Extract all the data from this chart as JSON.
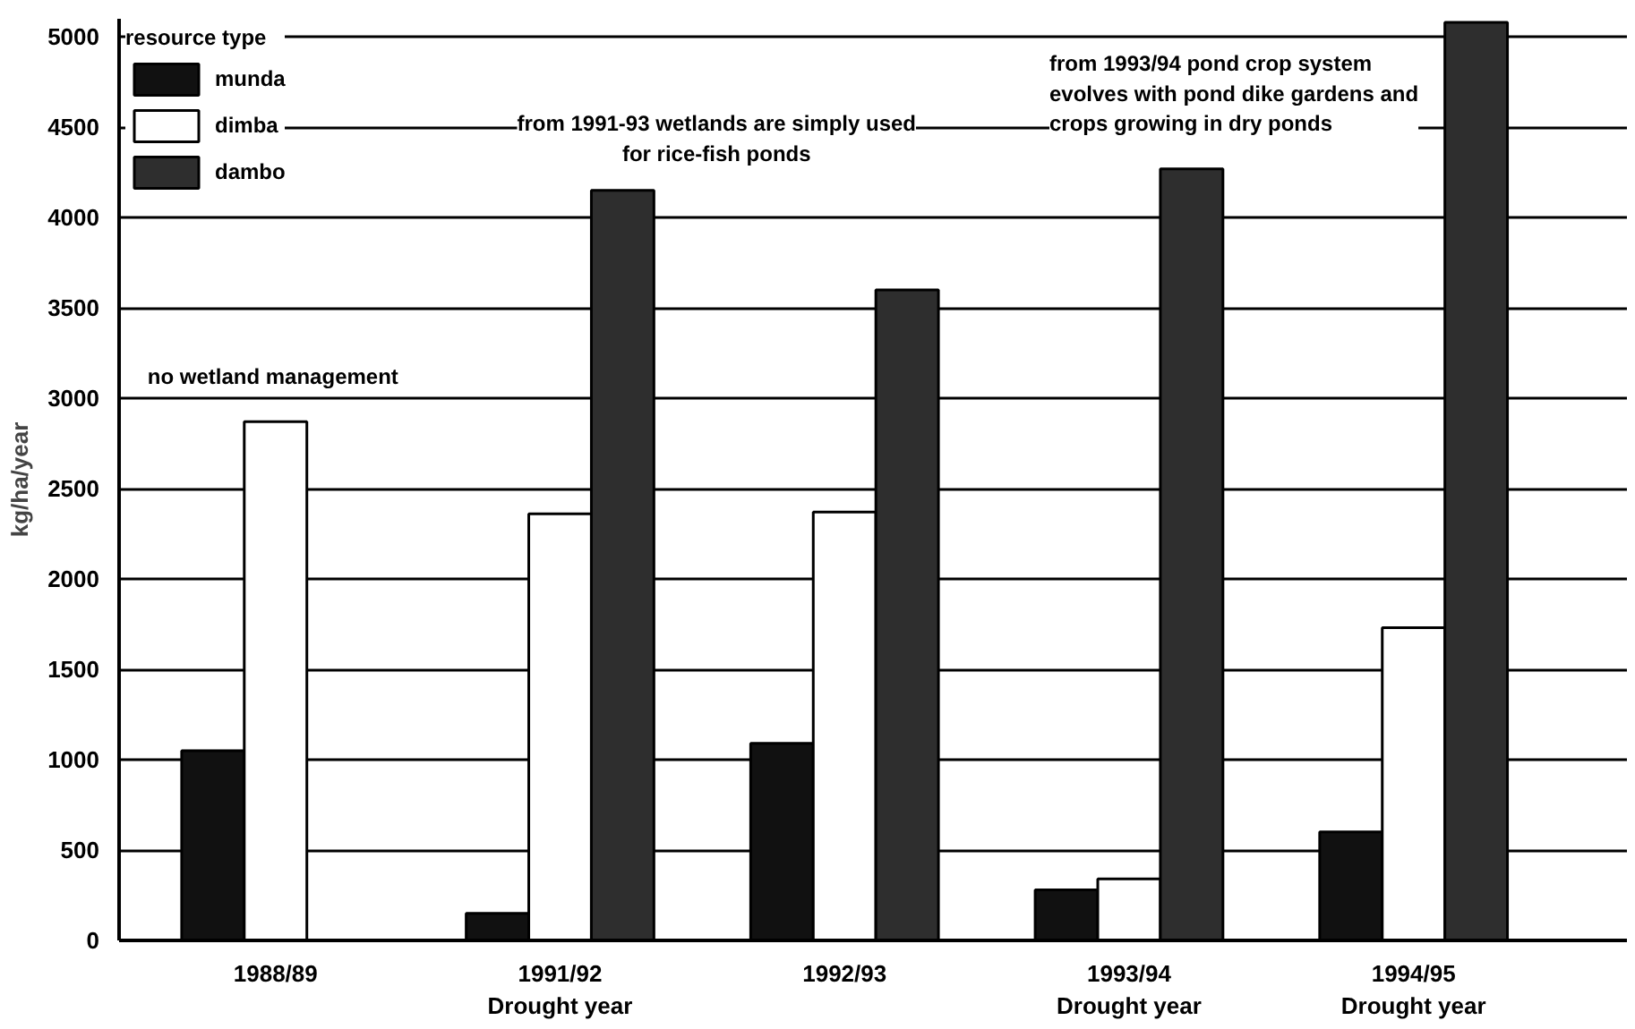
{
  "chart_data": {
    "type": "bar",
    "categories": [
      "1988/89",
      "1991/92\nDrought year",
      "1992/93",
      "1993/94\nDrought year",
      "1994/95\nDrought year"
    ],
    "ylabel": "kg/ha/year",
    "legend_title": "resource type",
    "series": [
      {
        "name": "munda",
        "color": "#111111",
        "values": [
          1050,
          150,
          1090,
          280,
          600
        ]
      },
      {
        "name": "dimba",
        "color": "#ffffff",
        "values": [
          2870,
          2360,
          2370,
          340,
          1730
        ]
      },
      {
        "name": "dambo",
        "color": "#2e2e2e",
        "values": [
          null,
          4150,
          3600,
          4270,
          5080
        ]
      }
    ],
    "ylim": [
      0,
      5100
    ],
    "yticks": [
      0,
      500,
      1000,
      1500,
      2000,
      2500,
      3000,
      3500,
      4000,
      4500,
      5000
    ],
    "grid": "y",
    "legend": "top left",
    "annotations": [
      "no wetland management",
      "from 1991-93 wetlands are simply used\nfor rice-fish ponds",
      "from 1993/94 pond crop system\nevolves with pond dike gardens and\ncrops growing in dry ponds"
    ]
  }
}
